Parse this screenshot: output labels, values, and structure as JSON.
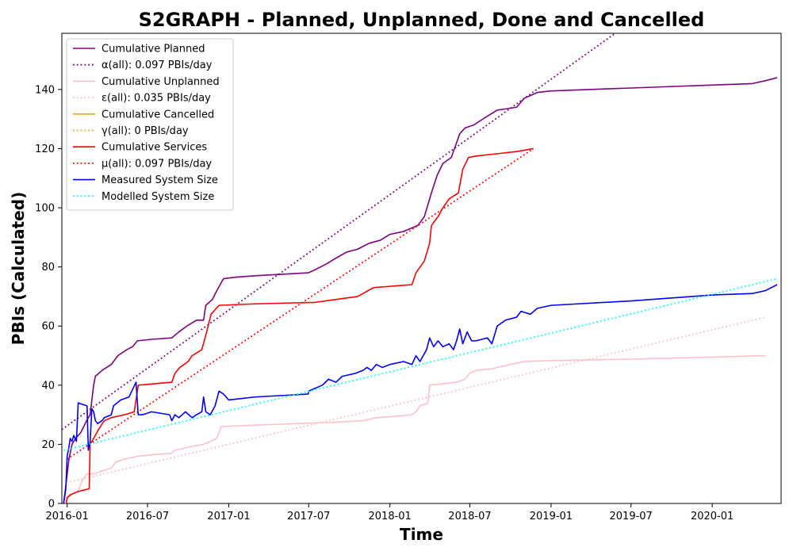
{
  "chart_data": {
    "type": "line",
    "title": "S2GRAPH - Planned, Unplanned, Done  and Cancelled",
    "xlabel": "Time",
    "ylabel": "PBIs (Calculated)",
    "xlim": [
      "2015-12-20",
      "2020-06-05"
    ],
    "ylim": [
      0,
      159
    ],
    "x_ticks": [
      "2016-01-01",
      "2016-07-01",
      "2017-01-01",
      "2017-07-01",
      "2018-01-01",
      "2018-07-01",
      "2019-01-01",
      "2019-07-01",
      "2020-01-01"
    ],
    "x_tick_labels": [
      "2016-01",
      "2016-07",
      "2017-01",
      "2017-07",
      "2018-01",
      "2018-07",
      "2019-01",
      "2019-07",
      "2020-01"
    ],
    "y_ticks": [
      0,
      20,
      40,
      60,
      80,
      100,
      120,
      140
    ],
    "grid": false,
    "legend_position": "top-left",
    "series": [
      {
        "name": "Cumulative Planned",
        "color": "#800080",
        "style": "solid",
        "points": [
          [
            "2015-12-24",
            0
          ],
          [
            "2015-12-29",
            6
          ],
          [
            "2016-01-05",
            15
          ],
          [
            "2016-01-12",
            20
          ],
          [
            "2016-01-20",
            22
          ],
          [
            "2016-02-01",
            24
          ],
          [
            "2016-02-14",
            28
          ],
          [
            "2016-02-22",
            30
          ],
          [
            "2016-03-01",
            40
          ],
          [
            "2016-03-05",
            43
          ],
          [
            "2016-03-20",
            45
          ],
          [
            "2016-04-10",
            47
          ],
          [
            "2016-04-25",
            50
          ],
          [
            "2016-05-15",
            52
          ],
          [
            "2016-05-28",
            53
          ],
          [
            "2016-06-08",
            55
          ],
          [
            "2016-07-10",
            55.5
          ],
          [
            "2016-08-25",
            56
          ],
          [
            "2016-09-10",
            58
          ],
          [
            "2016-09-28",
            60
          ],
          [
            "2016-10-20",
            62
          ],
          [
            "2016-11-05",
            62
          ],
          [
            "2016-11-10",
            67
          ],
          [
            "2016-11-25",
            69
          ],
          [
            "2016-12-05",
            72
          ],
          [
            "2016-12-20",
            76
          ],
          [
            "2017-01-15",
            76.5
          ],
          [
            "2017-03-01",
            77
          ],
          [
            "2017-06-30",
            78
          ],
          [
            "2017-07-15",
            79
          ],
          [
            "2017-08-10",
            81
          ],
          [
            "2017-09-01",
            83
          ],
          [
            "2017-09-25",
            85
          ],
          [
            "2017-10-20",
            86
          ],
          [
            "2017-11-15",
            88
          ],
          [
            "2017-12-10",
            89
          ],
          [
            "2018-01-01",
            91
          ],
          [
            "2018-02-01",
            92
          ],
          [
            "2018-03-05",
            94
          ],
          [
            "2018-03-20",
            97
          ],
          [
            "2018-04-05",
            105
          ],
          [
            "2018-04-18",
            111
          ],
          [
            "2018-05-01",
            115
          ],
          [
            "2018-05-20",
            117
          ],
          [
            "2018-06-01",
            122
          ],
          [
            "2018-06-08",
            125
          ],
          [
            "2018-06-20",
            127
          ],
          [
            "2018-07-10",
            128
          ],
          [
            "2018-07-20",
            129
          ],
          [
            "2018-08-10",
            131
          ],
          [
            "2018-09-01",
            133
          ],
          [
            "2018-10-15",
            134
          ],
          [
            "2018-11-01",
            137
          ],
          [
            "2018-12-01",
            139
          ],
          [
            "2019-01-01",
            139.5
          ],
          [
            "2019-04-01",
            140
          ],
          [
            "2019-07-01",
            140.5
          ],
          [
            "2019-10-01",
            141
          ],
          [
            "2020-01-01",
            141.5
          ],
          [
            "2020-04-01",
            142
          ],
          [
            "2020-05-01",
            143
          ],
          [
            "2020-05-27",
            144
          ]
        ]
      },
      {
        "name": "α(all): 0.097 PBIs/day",
        "color": "#800080",
        "style": "dotted",
        "points": [
          [
            "2015-12-20",
            25
          ],
          [
            "2020-01-15",
            184
          ]
        ]
      },
      {
        "name": "Cumulative Unplanned",
        "color": "#ffc0cb",
        "style": "solid",
        "points": [
          [
            "2015-12-28",
            0
          ],
          [
            "2016-01-05",
            3
          ],
          [
            "2016-01-25",
            4
          ],
          [
            "2016-02-05",
            8
          ],
          [
            "2016-02-15",
            10
          ],
          [
            "2016-03-01",
            10
          ],
          [
            "2016-03-20",
            11
          ],
          [
            "2016-04-10",
            12
          ],
          [
            "2016-04-20",
            14
          ],
          [
            "2016-05-10",
            15
          ],
          [
            "2016-06-10",
            16
          ],
          [
            "2016-07-15",
            16.5
          ],
          [
            "2016-08-25",
            17
          ],
          [
            "2016-09-01",
            18
          ],
          [
            "2016-10-01",
            19
          ],
          [
            "2016-11-05",
            20
          ],
          [
            "2016-12-05",
            22
          ],
          [
            "2016-12-15",
            26
          ],
          [
            "2017-03-01",
            26.5
          ],
          [
            "2017-06-01",
            27
          ],
          [
            "2017-09-01",
            27.5
          ],
          [
            "2017-11-01",
            28
          ],
          [
            "2017-12-01",
            29
          ],
          [
            "2018-01-15",
            29.5
          ],
          [
            "2018-02-20",
            30
          ],
          [
            "2018-03-01",
            31
          ],
          [
            "2018-03-10",
            33
          ],
          [
            "2018-03-28",
            34
          ],
          [
            "2018-04-01",
            40
          ],
          [
            "2018-06-01",
            41
          ],
          [
            "2018-06-20",
            42
          ],
          [
            "2018-07-01",
            44
          ],
          [
            "2018-07-15",
            45
          ],
          [
            "2018-08-20",
            45.5
          ],
          [
            "2018-09-01",
            46
          ],
          [
            "2018-10-01",
            47
          ],
          [
            "2018-11-01",
            48
          ],
          [
            "2019-01-01",
            48.3
          ],
          [
            "2019-07-01",
            48.8
          ],
          [
            "2020-01-01",
            49.5
          ],
          [
            "2020-05-01",
            50
          ]
        ]
      },
      {
        "name": "ε(all): 0.035 PBIs/day",
        "color": "#ffc0cb",
        "style": "dotted",
        "points": [
          [
            "2015-12-30",
            7
          ],
          [
            "2020-05-01",
            63
          ]
        ]
      },
      {
        "name": "Cumulative Cancelled",
        "color": "#ffa500",
        "style": "solid",
        "points": []
      },
      {
        "name": "γ(all): 0 PBIs/day",
        "color": "#ffa500",
        "style": "dotted",
        "points": []
      },
      {
        "name": "Cumulative Services",
        "color": "#ff0000",
        "style": "solid",
        "points": [
          [
            "2015-12-30",
            0
          ],
          [
            "2016-01-01",
            2
          ],
          [
            "2016-01-10",
            3
          ],
          [
            "2016-01-25",
            4
          ],
          [
            "2016-02-20",
            5
          ],
          [
            "2016-02-22",
            20
          ],
          [
            "2016-03-01",
            22
          ],
          [
            "2016-03-12",
            25
          ],
          [
            "2016-03-25",
            28
          ],
          [
            "2016-04-10",
            29
          ],
          [
            "2016-05-10",
            30
          ],
          [
            "2016-06-01",
            31
          ],
          [
            "2016-06-10",
            40
          ],
          [
            "2016-08-25",
            41
          ],
          [
            "2016-09-01",
            44
          ],
          [
            "2016-09-12",
            46
          ],
          [
            "2016-10-01",
            48
          ],
          [
            "2016-10-10",
            50
          ],
          [
            "2016-11-01",
            52
          ],
          [
            "2016-11-12",
            58
          ],
          [
            "2016-11-22",
            64
          ],
          [
            "2016-12-10",
            67
          ],
          [
            "2017-03-01",
            67.5
          ],
          [
            "2017-07-15",
            68
          ],
          [
            "2017-09-01",
            69
          ],
          [
            "2017-10-20",
            70
          ],
          [
            "2017-11-25",
            73
          ],
          [
            "2018-02-20",
            74
          ],
          [
            "2018-03-01",
            78
          ],
          [
            "2018-03-20",
            82
          ],
          [
            "2018-04-01",
            88
          ],
          [
            "2018-04-05",
            94
          ],
          [
            "2018-04-20",
            97
          ],
          [
            "2018-05-01",
            100
          ],
          [
            "2018-05-15",
            103
          ],
          [
            "2018-06-05",
            105
          ],
          [
            "2018-06-15",
            113
          ],
          [
            "2018-06-28",
            117
          ],
          [
            "2018-07-15",
            117.5
          ],
          [
            "2018-10-15",
            119
          ],
          [
            "2018-11-22",
            120
          ]
        ]
      },
      {
        "name": "μ(all): 0.097 PBIs/day",
        "color": "#ff0000",
        "style": "dotted",
        "points": [
          [
            "2016-01-01",
            15
          ],
          [
            "2018-11-22",
            120
          ]
        ]
      },
      {
        "name": "Measured System Size",
        "color": "#0000ff",
        "style": "solid",
        "points": [
          [
            "2015-12-24",
            0
          ],
          [
            "2015-12-29",
            5
          ],
          [
            "2016-01-01",
            16
          ],
          [
            "2016-01-05",
            19
          ],
          [
            "2016-01-08",
            22
          ],
          [
            "2016-01-12",
            21
          ],
          [
            "2016-01-16",
            23
          ],
          [
            "2016-01-22",
            21
          ],
          [
            "2016-01-26",
            34
          ],
          [
            "2016-02-15",
            33
          ],
          [
            "2016-02-18",
            18
          ],
          [
            "2016-02-22",
            21
          ],
          [
            "2016-02-26",
            32
          ],
          [
            "2016-03-01",
            31
          ],
          [
            "2016-03-05",
            28
          ],
          [
            "2016-03-10",
            27
          ],
          [
            "2016-03-20",
            28
          ],
          [
            "2016-03-25",
            29
          ],
          [
            "2016-04-10",
            30
          ],
          [
            "2016-04-15",
            33
          ],
          [
            "2016-05-01",
            35
          ],
          [
            "2016-05-20",
            36
          ],
          [
            "2016-06-05",
            41
          ],
          [
            "2016-06-10",
            30
          ],
          [
            "2016-06-20",
            30
          ],
          [
            "2016-07-10",
            31
          ],
          [
            "2016-08-20",
            30
          ],
          [
            "2016-08-25",
            28
          ],
          [
            "2016-09-01",
            30
          ],
          [
            "2016-09-10",
            29
          ],
          [
            "2016-09-25",
            31
          ],
          [
            "2016-10-10",
            29
          ],
          [
            "2016-10-20",
            30
          ],
          [
            "2016-11-01",
            31
          ],
          [
            "2016-11-05",
            36
          ],
          [
            "2016-11-10",
            31
          ],
          [
            "2016-11-20",
            30
          ],
          [
            "2016-12-01",
            33
          ],
          [
            "2016-12-10",
            38
          ],
          [
            "2016-12-20",
            37
          ],
          [
            "2017-01-01",
            35
          ],
          [
            "2017-03-01",
            36
          ],
          [
            "2017-06-30",
            37
          ],
          [
            "2017-07-01",
            38
          ],
          [
            "2017-08-01",
            40
          ],
          [
            "2017-08-15",
            42
          ],
          [
            "2017-09-01",
            41
          ],
          [
            "2017-09-15",
            43
          ],
          [
            "2017-10-15",
            44
          ],
          [
            "2017-11-01",
            45
          ],
          [
            "2017-11-10",
            46
          ],
          [
            "2017-11-20",
            45
          ],
          [
            "2017-12-01",
            47
          ],
          [
            "2017-12-15",
            46
          ],
          [
            "2018-01-01",
            47
          ],
          [
            "2018-02-01",
            48
          ],
          [
            "2018-02-20",
            47
          ],
          [
            "2018-03-01",
            50
          ],
          [
            "2018-03-10",
            48
          ],
          [
            "2018-03-25",
            52
          ],
          [
            "2018-04-01",
            56
          ],
          [
            "2018-04-10",
            53
          ],
          [
            "2018-04-20",
            55
          ],
          [
            "2018-05-01",
            53
          ],
          [
            "2018-05-15",
            54
          ],
          [
            "2018-05-25",
            52
          ],
          [
            "2018-06-01",
            55
          ],
          [
            "2018-06-08",
            59
          ],
          [
            "2018-06-15",
            54
          ],
          [
            "2018-06-25",
            58
          ],
          [
            "2018-07-05",
            55
          ],
          [
            "2018-07-15",
            55
          ],
          [
            "2018-08-10",
            56
          ],
          [
            "2018-08-20",
            54
          ],
          [
            "2018-09-01",
            60
          ],
          [
            "2018-09-20",
            62
          ],
          [
            "2018-10-15",
            63
          ],
          [
            "2018-10-25",
            65
          ],
          [
            "2018-11-15",
            64
          ],
          [
            "2018-12-01",
            66
          ],
          [
            "2019-01-01",
            67
          ],
          [
            "2019-07-01",
            68.5
          ],
          [
            "2020-01-01",
            70.5
          ],
          [
            "2020-04-01",
            71
          ],
          [
            "2020-05-01",
            72
          ],
          [
            "2020-05-27",
            74
          ]
        ]
      },
      {
        "name": "Modelled System Size",
        "color": "#00ffff",
        "style": "dotted",
        "points": [
          [
            "2015-12-24",
            18
          ],
          [
            "2020-05-27",
            76
          ]
        ]
      }
    ]
  }
}
